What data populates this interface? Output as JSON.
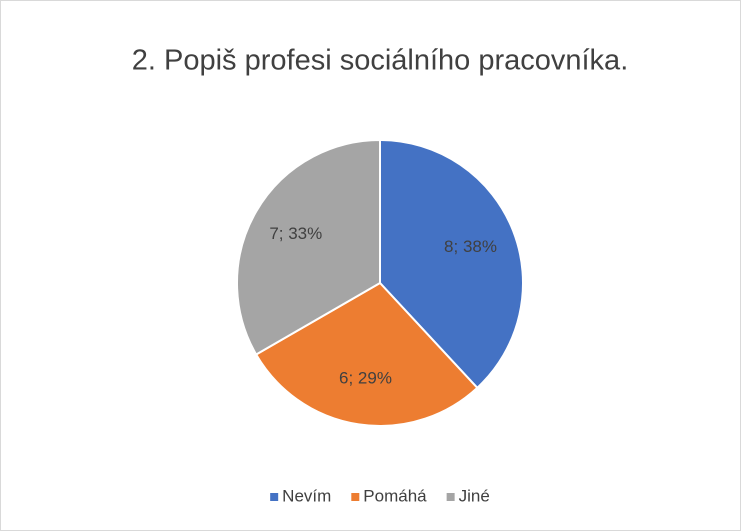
{
  "chart_data": {
    "type": "pie",
    "title": "2. Popiš profesi sociálního pracovníka.",
    "categories": [
      "Nevím",
      "Pomáhá",
      "Jiné"
    ],
    "values": [
      8,
      6,
      7
    ],
    "value_labels": [
      "8; 38%",
      "6; 29%",
      "7; 33%"
    ],
    "colors": [
      "#4472c4",
      "#ed7d31",
      "#a5a5a5"
    ],
    "legend": "bottom"
  }
}
